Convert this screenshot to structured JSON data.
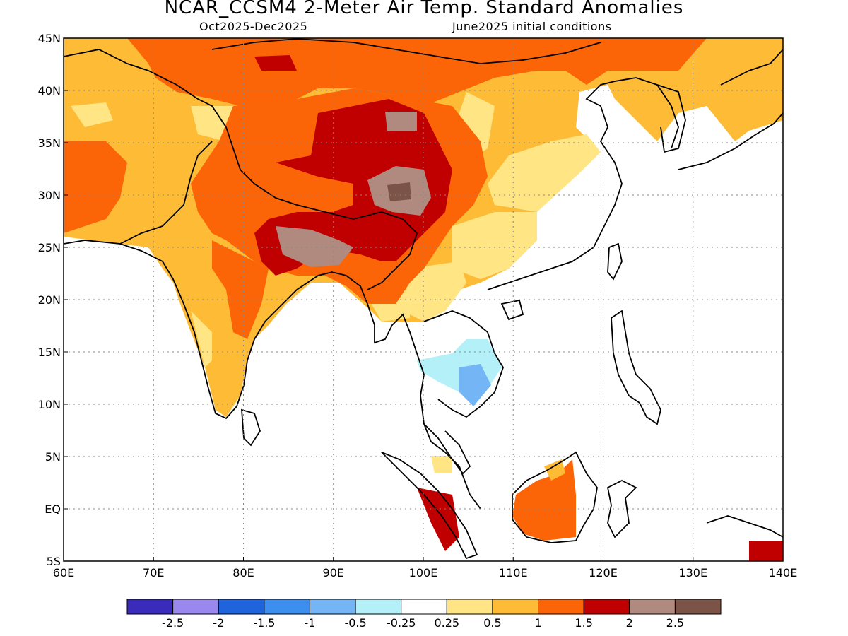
{
  "title": "NCAR_CCSM4 2-Meter Air Temp. Standard Anomalies",
  "subtitle_left": "Oct2025-Dec2025",
  "subtitle_right": "June2025 initial conditions",
  "map": {
    "lon_range": [
      60,
      140
    ],
    "lat_range": [
      -5,
      45
    ],
    "lat_ticks": [
      "45N",
      "40N",
      "35N",
      "30N",
      "25N",
      "20N",
      "15N",
      "10N",
      "5N",
      "EQ",
      "5S"
    ],
    "lon_ticks": [
      "60E",
      "70E",
      "80E",
      "90E",
      "100E",
      "110E",
      "120E",
      "130E",
      "140E"
    ],
    "grid": "dotted"
  },
  "legend": {
    "colors": [
      "#3b2bbb",
      "#9a88ef",
      "#1f63dd",
      "#3c8fef",
      "#74b5f6",
      "#b4f0f8",
      "#ffffff",
      "#ffe583",
      "#fdbb36",
      "#fc6507",
      "#c00000",
      "#b08a7e",
      "#7c5447"
    ],
    "labels": [
      "-2.5",
      "-2",
      "-1.5",
      "-1",
      "-0.5",
      "-0.25",
      "0.25",
      "0.5",
      "1",
      "1.5",
      "2",
      "2.5"
    ]
  }
}
